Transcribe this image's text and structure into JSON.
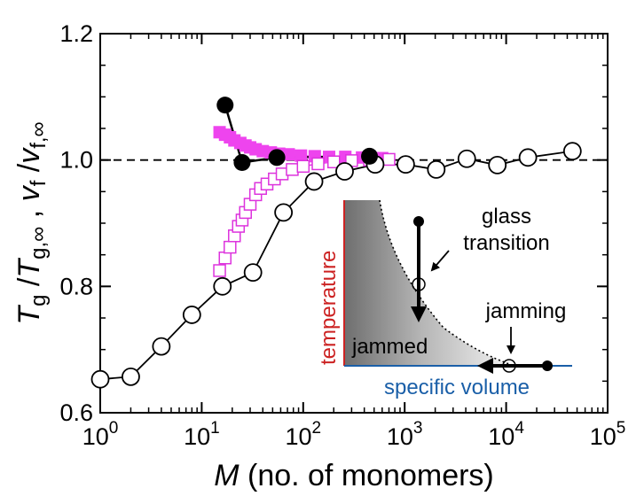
{
  "chart_data": {
    "type": "scatter",
    "xscale": "log",
    "xlim": [
      1,
      100000
    ],
    "ylim": [
      0.6,
      1.2
    ],
    "x_ticks": [
      {
        "value": 1,
        "base": "10",
        "exp": "0"
      },
      {
        "value": 10,
        "base": "10",
        "exp": "1"
      },
      {
        "value": 100,
        "base": "10",
        "exp": "2"
      },
      {
        "value": 1000,
        "base": "10",
        "exp": "3"
      },
      {
        "value": 10000,
        "base": "10",
        "exp": "4"
      },
      {
        "value": 100000,
        "base": "10",
        "exp": "5"
      }
    ],
    "y_ticks": [
      {
        "value": 0.6,
        "label": "0.6"
      },
      {
        "value": 0.8,
        "label": "0.8"
      },
      {
        "value": 1.0,
        "label": "1.0"
      },
      {
        "value": 1.2,
        "label": "1.2"
      }
    ],
    "xlabel": {
      "symbol": "M",
      "rest": " (no. of monomers)"
    },
    "ylabel": {
      "t": "T",
      "t_sub": "g",
      "sep1": " /",
      "t2": "T",
      "t2_sub": "g,∞",
      "sep2": " ,  ",
      "v": "v",
      "v_sub": "f",
      "sep3": " /",
      "v2": "v",
      "v2_sub": "f,∞"
    },
    "reference_line": {
      "y": 1.0,
      "style": "dashed",
      "color": "#000000"
    },
    "series": [
      {
        "name": "open-circles",
        "marker": "circle-open",
        "color": "#000000",
        "x": [
          1,
          2,
          4,
          8,
          16,
          32,
          64,
          128,
          256,
          512,
          1024,
          2048,
          4096,
          8192,
          16384,
          45000
        ],
        "y": [
          0.653,
          0.657,
          0.705,
          0.755,
          0.8,
          0.822,
          0.917,
          0.966,
          0.982,
          0.993,
          0.993,
          0.985,
          1.002,
          0.992,
          1.004,
          1.014
        ]
      },
      {
        "name": "magenta-filled-squares",
        "marker": "square-filled",
        "color": "#ee44ee",
        "x": [
          15,
          17,
          19,
          21,
          24,
          27,
          30,
          34,
          40,
          48,
          58,
          72,
          95,
          130,
          180,
          260,
          380,
          600
        ],
        "y": [
          1.044,
          1.04,
          1.036,
          1.031,
          1.027,
          1.023,
          1.02,
          1.017,
          1.014,
          1.012,
          1.01,
          1.009,
          1.007,
          1.006,
          1.005,
          1.005,
          1.004,
          1.003
        ]
      },
      {
        "name": "magenta-open-squares",
        "marker": "square-open",
        "color": "#dd33dd",
        "x": [
          15,
          17,
          19,
          21,
          23,
          25,
          27,
          30,
          34,
          38,
          44,
          52,
          62,
          78,
          100,
          140,
          200,
          300,
          450,
          700
        ],
        "y": [
          0.825,
          0.845,
          0.862,
          0.88,
          0.895,
          0.905,
          0.917,
          0.93,
          0.945,
          0.955,
          0.962,
          0.97,
          0.978,
          0.985,
          0.99,
          0.994,
          0.997,
          0.999,
          1.0,
          1.001
        ]
      },
      {
        "name": "filled-circles",
        "marker": "circle-filled",
        "color": "#000000",
        "x": [
          17,
          25,
          55,
          450
        ],
        "y": [
          1.087,
          0.996,
          1.004,
          1.006
        ]
      }
    ],
    "inset": {
      "y_label": "temperature",
      "x_label": "specific volume",
      "region_label": "jammed",
      "annotation_glass": [
        "glass",
        "transition"
      ],
      "annotation_jamming": "jamming",
      "y_axis_color": "#cc2222",
      "x_axis_color": "#1a5fa8"
    }
  }
}
